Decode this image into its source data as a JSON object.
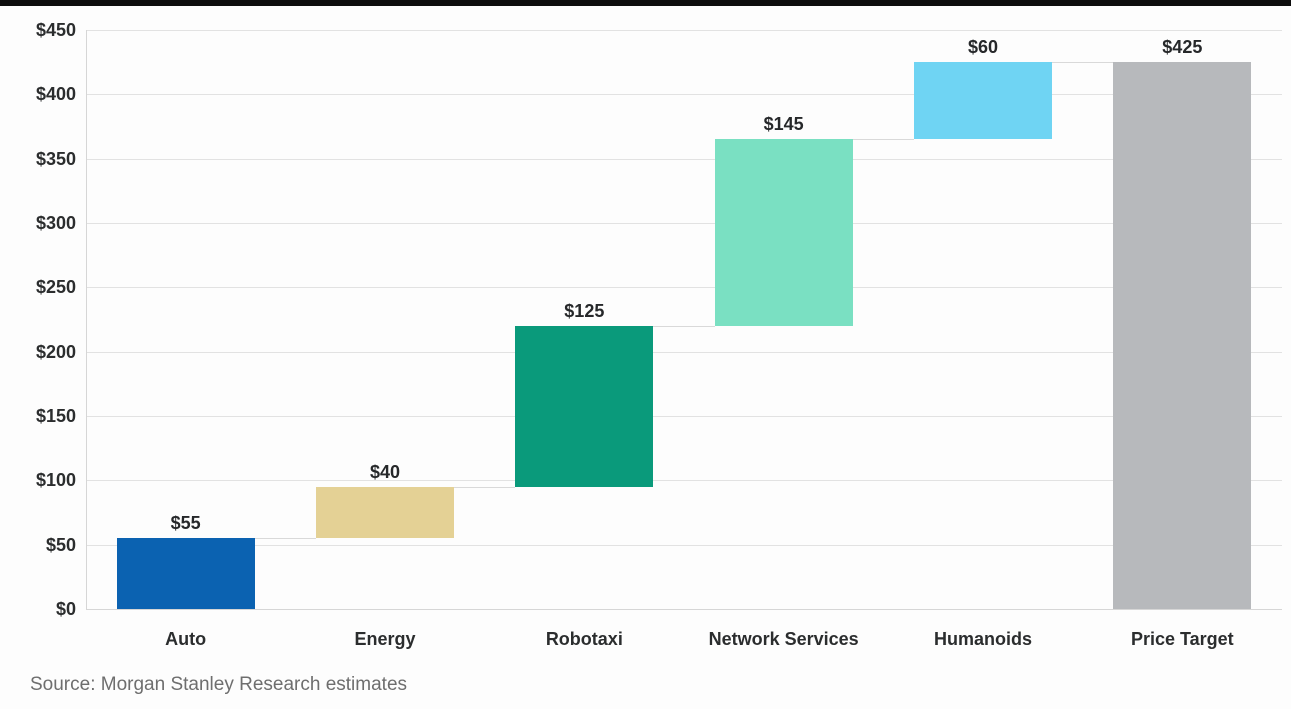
{
  "page": {
    "source_note": "Source: Morgan Stanley Research estimates"
  },
  "chart_data": {
    "type": "bar",
    "subtype": "waterfall",
    "title": "",
    "xlabel": "",
    "ylabel": "",
    "categories": [
      "Auto",
      "Energy",
      "Robotaxi",
      "Network Services",
      "Humanoids",
      "Price Target"
    ],
    "values": [
      55,
      40,
      125,
      145,
      60,
      425
    ],
    "value_labels": [
      "$55",
      "$40",
      "$125",
      "$145",
      "$60",
      "$425"
    ],
    "starts": [
      0,
      55,
      95,
      220,
      365,
      0
    ],
    "ends": [
      55,
      95,
      220,
      365,
      425,
      425
    ],
    "is_total": [
      false,
      false,
      false,
      false,
      false,
      true
    ],
    "bar_colors": [
      "#0b62b1",
      "#e4d195",
      "#0a9a7b",
      "#7ae0c2",
      "#6fd4f3",
      "#b7b9bc"
    ],
    "ylim": [
      0,
      450
    ],
    "y_ticks": [
      0,
      50,
      100,
      150,
      200,
      250,
      300,
      350,
      400,
      450
    ],
    "y_tick_labels": [
      "$0",
      "$50",
      "$100",
      "$150",
      "$200",
      "$250",
      "$300",
      "$350",
      "$400",
      "$450"
    ],
    "grid": "horizontal",
    "legend_position": "none",
    "connector_color": "#d9d9d9",
    "grid_color": "#e2e2e2"
  }
}
